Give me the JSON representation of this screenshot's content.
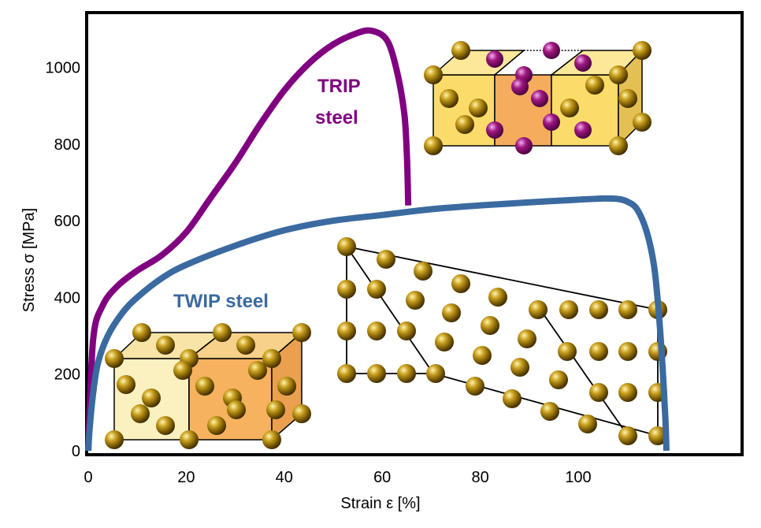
{
  "chart_data": {
    "type": "line",
    "title": "",
    "xlabel": "Strain ε [%]",
    "ylabel": "Stress σ [MPa]",
    "xlim": [
      0,
      120
    ],
    "ylim": [
      0,
      1110
    ],
    "x_ticks": [
      "0",
      "20",
      "40",
      "60",
      "80",
      "100"
    ],
    "y_ticks": [
      "0",
      "200",
      "400",
      "600",
      "800",
      "1000"
    ],
    "grid": false,
    "series": [
      {
        "name": "TRIP steel",
        "color": "#800080",
        "x": [
          0,
          1,
          3,
          6,
          10,
          15,
          20,
          25,
          30,
          35,
          40,
          45,
          50,
          55,
          58,
          61,
          63,
          64.5,
          65,
          65.2,
          65.3
        ],
        "y": [
          0,
          290,
          380,
          430,
          470,
          510,
          570,
          660,
          750,
          850,
          940,
          1010,
          1060,
          1090,
          1095,
          1070,
          990,
          880,
          780,
          700,
          640
        ]
      },
      {
        "name": "TWIP steel",
        "color": "#3a6aa0",
        "x": [
          0,
          0.3,
          1,
          2,
          4,
          7,
          10,
          15,
          20,
          30,
          40,
          50,
          60,
          70,
          80,
          90,
          100,
          105,
          108,
          110,
          112,
          114,
          115.5,
          116.5,
          117.2,
          117.8,
          118
        ],
        "y": [
          0,
          60,
          150,
          230,
          300,
          360,
          400,
          450,
          485,
          535,
          575,
          600,
          615,
          630,
          640,
          648,
          655,
          658,
          657,
          650,
          630,
          570,
          480,
          350,
          220,
          80,
          0
        ]
      }
    ],
    "annotations": [
      "TRIP steel",
      "TWIP steel"
    ]
  }
}
